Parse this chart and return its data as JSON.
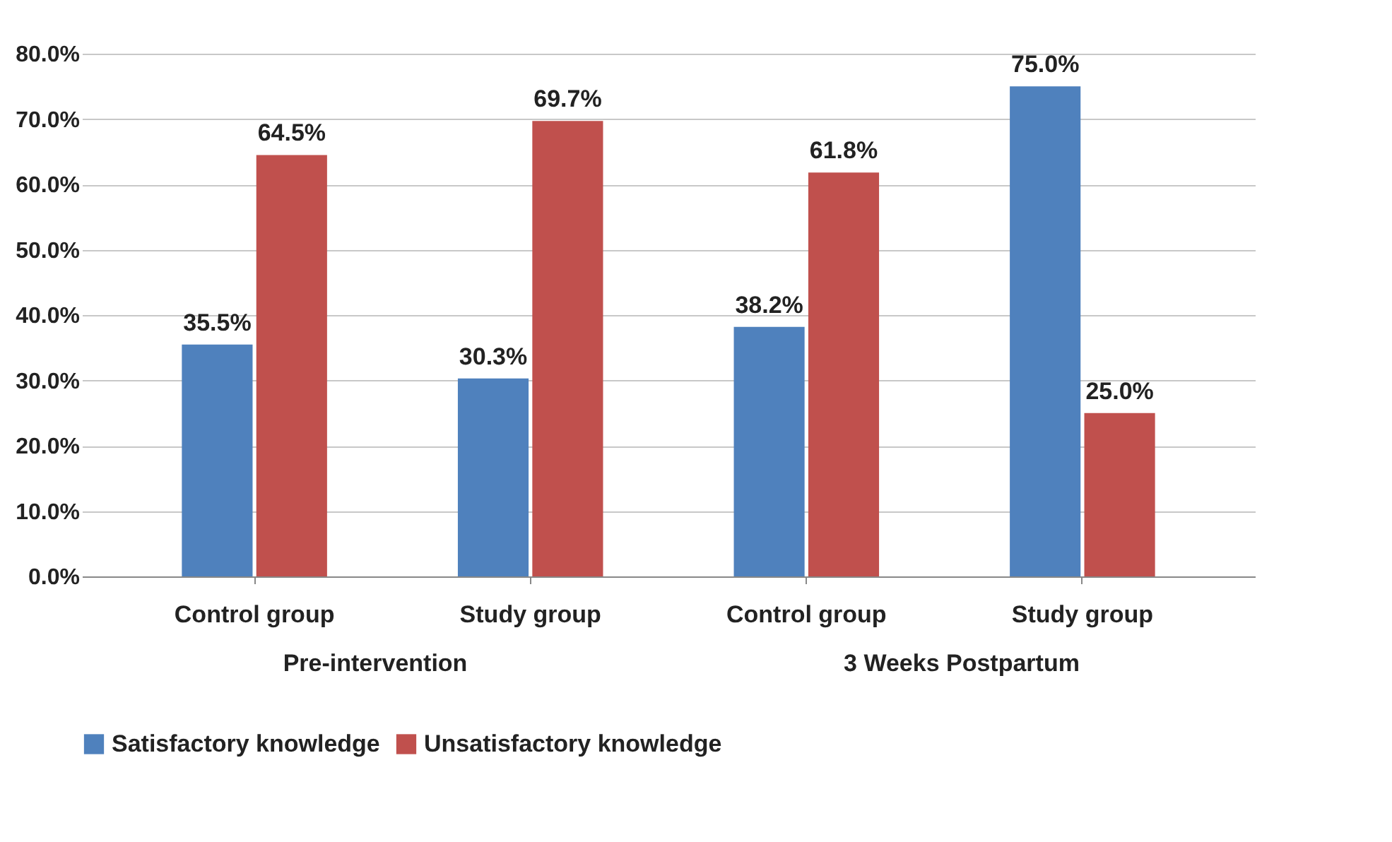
{
  "chart_data": {
    "type": "bar",
    "categories": [
      "Control group",
      "Study group",
      "Control group",
      "Study group"
    ],
    "series": [
      {
        "name": "Satisfactory knowledge",
        "color": "#4f81bd",
        "values": [
          35.5,
          30.3,
          38.2,
          75.0
        ],
        "value_labels": [
          "35.5%",
          "30.3%",
          "38.2%",
          "75.0%"
        ]
      },
      {
        "name": "Unsatisfactory knowledge",
        "color": "#c0504d",
        "values": [
          64.5,
          69.7,
          61.8,
          25.0
        ],
        "value_labels": [
          "64.5%",
          "69.7%",
          "61.8%",
          "25.0%"
        ]
      }
    ],
    "ylim": [
      0,
      80
    ],
    "yticks": [
      {
        "value": 0,
        "label": "0.0%"
      },
      {
        "value": 10,
        "label": "10.0%"
      },
      {
        "value": 20,
        "label": "20.0%"
      },
      {
        "value": 30,
        "label": "30.0%"
      },
      {
        "value": 40,
        "label": "40.0%"
      },
      {
        "value": 50,
        "label": "50.0%"
      },
      {
        "value": 60,
        "label": "60.0%"
      },
      {
        "value": 70,
        "label": "70.0%"
      },
      {
        "value": 80,
        "label": "80.0%"
      }
    ],
    "annotations": [
      "Pre-intervention",
      "3 Weeks Postpartum"
    ],
    "grid": "y",
    "legend": "bottom"
  }
}
